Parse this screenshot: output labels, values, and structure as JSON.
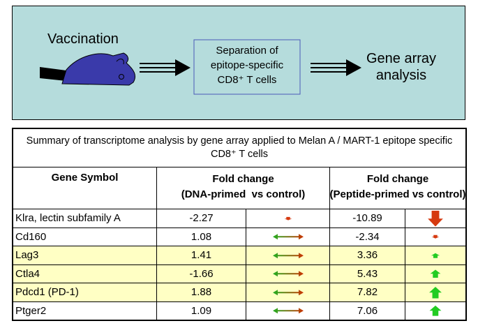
{
  "diagram": {
    "step1": "Vaccination",
    "step2_lines": [
      "Separation of",
      "epitope-specific",
      "CD8⁺ T cells"
    ],
    "step3_lines": [
      "Gene array",
      "analysis"
    ]
  },
  "table": {
    "caption": "Summary of transcriptome analysis by gene array applied to Melan A / MART-1 epitope specific CD8⁺ T cells",
    "headers": [
      "Gene Symbol",
      [
        "Fold change",
        "(DNA-primed  vs control)"
      ],
      [
        "Fold change",
        "(Peptide-primed vs control)"
      ]
    ],
    "rows": [
      [
        "Klra, lectin subfamily A",
        -2.27,
        -10.89
      ],
      [
        "Cd160",
        1.08,
        -2.34
      ],
      [
        "Lag3",
        1.41,
        3.36
      ],
      [
        "Ctla4",
        -1.66,
        5.43
      ],
      [
        "Pdcd1 (PD-1)",
        1.88,
        7.82
      ],
      [
        "Ptger2",
        1.09,
        7.06
      ]
    ],
    "highlighted_rows": [
      2,
      3,
      4
    ]
  }
}
